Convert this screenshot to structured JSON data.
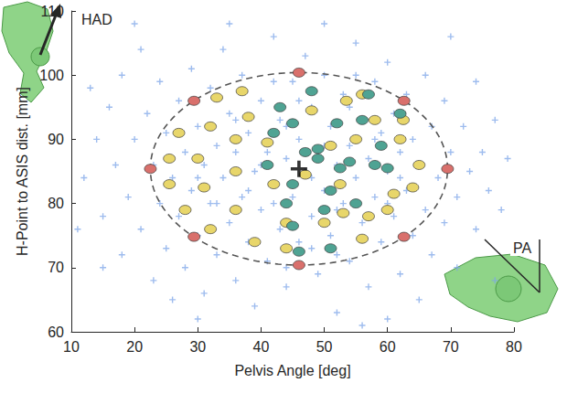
{
  "chart_data": {
    "type": "scatter",
    "x_label": "Pelvis Angle [deg]",
    "y_label": "H-Point to ASIS dist. [mm]",
    "xlim": [
      10,
      80
    ],
    "xticks": [
      10,
      20,
      30,
      40,
      50,
      60,
      70,
      80
    ],
    "ylim": [
      60,
      110
    ],
    "yticks": [
      60,
      70,
      80,
      90,
      100,
      110
    ],
    "grid": false,
    "annotations": [
      "HAD",
      "PA"
    ],
    "ellipse": {
      "center": [
        46,
        85.4
      ],
      "radii": [
        23.5,
        15
      ],
      "line_style": "dashed",
      "color": "#555555"
    },
    "center": {
      "point": [
        46,
        85.4
      ],
      "color": "#000000",
      "marker": "plus"
    },
    "series": [
      {
        "color": "#7ea6e8",
        "marker": "plus",
        "points": [
          [
            12,
            84
          ],
          [
            14,
            90
          ],
          [
            15,
            78
          ],
          [
            16,
            95
          ],
          [
            17,
            86
          ],
          [
            18,
            72
          ],
          [
            18,
            100
          ],
          [
            19,
            81
          ],
          [
            20,
            90
          ],
          [
            21,
            76
          ],
          [
            21,
            104
          ],
          [
            22,
            94
          ],
          [
            23,
            68
          ],
          [
            23,
            86
          ],
          [
            24,
            80
          ],
          [
            24,
            99
          ],
          [
            25,
            73
          ],
          [
            25,
            91
          ],
          [
            26,
            65
          ],
          [
            26,
            84
          ],
          [
            27,
            96
          ],
          [
            27,
            78
          ],
          [
            28,
            88
          ],
          [
            28,
            70
          ],
          [
            29,
            101
          ],
          [
            29,
            82
          ],
          [
            30,
            92
          ],
          [
            30,
            75
          ],
          [
            31,
            86
          ],
          [
            31,
            66
          ],
          [
            32,
            98
          ],
          [
            32,
            80
          ],
          [
            33,
            89
          ],
          [
            33,
            72
          ],
          [
            34,
            104
          ],
          [
            34,
            84
          ],
          [
            35,
            77
          ],
          [
            35,
            94
          ],
          [
            36,
            68
          ],
          [
            36,
            88
          ],
          [
            37,
            81
          ],
          [
            37,
            100
          ],
          [
            38,
            74
          ],
          [
            38,
            91
          ],
          [
            39,
            85
          ],
          [
            39,
            64
          ],
          [
            40,
            96
          ],
          [
            40,
            79
          ],
          [
            41,
            88
          ],
          [
            41,
            71
          ],
          [
            42,
            106
          ],
          [
            42,
            83
          ],
          [
            43,
            93
          ],
          [
            43,
            76
          ],
          [
            44,
            87
          ],
          [
            44,
            67
          ],
          [
            45,
            99
          ],
          [
            45,
            81
          ],
          [
            46,
            90
          ],
          [
            46,
            74
          ],
          [
            47,
            85
          ],
          [
            47,
            103
          ],
          [
            48,
            78
          ],
          [
            48,
            95
          ],
          [
            49,
            69
          ],
          [
            49,
            88
          ],
          [
            50,
            82
          ],
          [
            50,
            100
          ],
          [
            51,
            75
          ],
          [
            51,
            92
          ],
          [
            52,
            86
          ],
          [
            52,
            63
          ],
          [
            53,
            97
          ],
          [
            53,
            80
          ],
          [
            54,
            89
          ],
          [
            54,
            71
          ],
          [
            55,
            84
          ],
          [
            55,
            105
          ],
          [
            56,
            77
          ],
          [
            56,
            93
          ],
          [
            57,
            67
          ],
          [
            57,
            87
          ],
          [
            58,
            99
          ],
          [
            58,
            81
          ],
          [
            59,
            91
          ],
          [
            59,
            74
          ],
          [
            60,
            85
          ],
          [
            60,
            102
          ],
          [
            61,
            78
          ],
          [
            61,
            94
          ],
          [
            62,
            69
          ],
          [
            62,
            88
          ],
          [
            63,
            82
          ],
          [
            63,
            97
          ],
          [
            64,
            75
          ],
          [
            64,
            90
          ],
          [
            65,
            86
          ],
          [
            65,
            65
          ],
          [
            66,
            79
          ],
          [
            66,
            100
          ],
          [
            67,
            92
          ],
          [
            67,
            72
          ],
          [
            68,
            84
          ],
          [
            69,
            96
          ],
          [
            69,
            77
          ],
          [
            70,
            88
          ],
          [
            71,
            81
          ],
          [
            71,
            70
          ],
          [
            72,
            92
          ],
          [
            73,
            85
          ],
          [
            74,
            76
          ],
          [
            74,
            99
          ],
          [
            75,
            88
          ],
          [
            76,
            82
          ],
          [
            77,
            93
          ],
          [
            78,
            79
          ],
          [
            79,
            87
          ],
          [
            13,
            98
          ],
          [
            15,
            70
          ],
          [
            20,
            108
          ],
          [
            30,
            62
          ],
          [
            50,
            108
          ],
          [
            60,
            62
          ],
          [
            70,
            106
          ],
          [
            77,
            68
          ],
          [
            11,
            76
          ],
          [
            35,
            108
          ],
          [
            56,
            61
          ],
          [
            40,
            86
          ],
          [
            42,
            80
          ],
          [
            44,
            92
          ],
          [
            48,
            84
          ],
          [
            50,
            89
          ],
          [
            52,
            79
          ],
          [
            54,
            95
          ],
          [
            38,
            82
          ],
          [
            46,
            96
          ],
          [
            36,
            93
          ],
          [
            58,
            90
          ],
          [
            60,
            80
          ],
          [
            44,
            70
          ],
          [
            48,
            73
          ],
          [
            52,
            72
          ],
          [
            55,
            100
          ],
          [
            42,
            99
          ],
          [
            33,
            80
          ],
          [
            30,
            84
          ],
          [
            62,
            84
          ]
        ]
      },
      {
        "color": "#d9706c",
        "marker": "circle",
        "points": [
          [
            22.5,
            85.4
          ],
          [
            69.5,
            85.4
          ],
          [
            46,
            100.4
          ],
          [
            46,
            70.4
          ],
          [
            29.4,
            96
          ],
          [
            62.6,
            96
          ],
          [
            29.4,
            74.8
          ],
          [
            62.6,
            74.8
          ]
        ]
      },
      {
        "color": "#e8d66a",
        "marker": "circle",
        "points": [
          [
            27,
            91
          ],
          [
            25.5,
            87
          ],
          [
            25.5,
            83
          ],
          [
            28,
            79
          ],
          [
            30,
            87
          ],
          [
            31,
            82.5
          ],
          [
            32,
            92
          ],
          [
            33,
            96.5
          ],
          [
            36,
            90
          ],
          [
            37,
            97.5
          ],
          [
            38,
            93.5
          ],
          [
            36,
            85
          ],
          [
            32,
            76
          ],
          [
            36,
            79
          ],
          [
            39,
            74
          ],
          [
            42,
            83
          ],
          [
            44,
            77
          ],
          [
            44,
            73
          ],
          [
            50,
            77
          ],
          [
            53,
            78.5
          ],
          [
            52.5,
            83
          ],
          [
            51,
            89
          ],
          [
            55,
            90
          ],
          [
            53.5,
            96
          ],
          [
            56,
            97
          ],
          [
            58,
            93
          ],
          [
            62,
            90
          ],
          [
            65,
            86
          ],
          [
            64,
            82.5
          ],
          [
            61,
            81.5
          ],
          [
            57,
            78
          ],
          [
            56,
            74.5
          ],
          [
            60,
            79
          ],
          [
            62.5,
            93
          ],
          [
            41,
            89.5
          ],
          [
            48,
            94.5
          ],
          [
            47,
            84.5
          ]
        ]
      },
      {
        "color": "#4fa393",
        "marker": "circle",
        "points": [
          [
            41,
            86
          ],
          [
            42,
            91
          ],
          [
            43,
            95
          ],
          [
            45,
            92.5
          ],
          [
            48,
            97.5
          ],
          [
            47,
            88
          ],
          [
            45,
            83
          ],
          [
            49,
            87
          ],
          [
            51,
            82
          ],
          [
            52.5,
            85.5
          ],
          [
            54,
            86.5
          ],
          [
            56,
            93
          ],
          [
            57,
            97
          ],
          [
            59,
            89
          ],
          [
            60,
            85.5
          ],
          [
            58,
            86
          ],
          [
            62,
            94
          ],
          [
            50,
            79
          ],
          [
            51,
            73
          ],
          [
            45,
            76.5
          ],
          [
            46,
            72.5
          ],
          [
            44,
            80
          ],
          [
            55,
            80
          ],
          [
            52,
            92.5
          ],
          [
            49,
            88.5
          ]
        ]
      }
    ]
  }
}
